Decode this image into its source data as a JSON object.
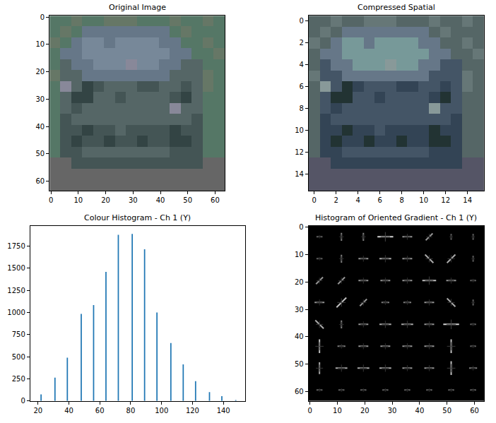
{
  "chart_data": [
    {
      "type": "image",
      "title": "Original Image",
      "xlim": [
        -0.5,
        63.5
      ],
      "ylim": [
        63.5,
        -0.5
      ],
      "xticks": [
        0,
        10,
        20,
        30,
        40,
        50,
        60
      ],
      "yticks": [
        0,
        10,
        20,
        30,
        40,
        50,
        60
      ],
      "pixels": [
        [
          "#576",
          "#576",
          "#676",
          "#576",
          "#576",
          "#676",
          "#676",
          "#676",
          "#576",
          "#576",
          "#576",
          "#676",
          "#576",
          "#576",
          "#676",
          "#576"
        ],
        [
          "#576",
          "#676",
          "#576",
          "#678",
          "#678",
          "#678",
          "#678",
          "#678",
          "#678",
          "#678",
          "#678",
          "#576",
          "#676",
          "#576",
          "#576",
          "#576"
        ],
        [
          "#676",
          "#576",
          "#678",
          "#789",
          "#789",
          "#678",
          "#789",
          "#789",
          "#789",
          "#789",
          "#678",
          "#678",
          "#576",
          "#576",
          "#676",
          "#576"
        ],
        [
          "#576",
          "#678",
          "#678",
          "#789",
          "#789",
          "#789",
          "#789",
          "#789",
          "#789",
          "#789",
          "#789",
          "#678",
          "#678",
          "#576",
          "#576",
          "#676"
        ],
        [
          "#576",
          "#566",
          "#678",
          "#678",
          "#789",
          "#789",
          "#789",
          "#889",
          "#789",
          "#789",
          "#678",
          "#678",
          "#566",
          "#566",
          "#576",
          "#576"
        ],
        [
          "#676",
          "#566",
          "#566",
          "#678",
          "#678",
          "#678",
          "#678",
          "#678",
          "#678",
          "#678",
          "#678",
          "#566",
          "#566",
          "#566",
          "#676",
          "#576"
        ],
        [
          "#576",
          "#889",
          "#566",
          "#344",
          "#455",
          "#566",
          "#566",
          "#566",
          "#455",
          "#455",
          "#566",
          "#566",
          "#455",
          "#566",
          "#676",
          "#576"
        ],
        [
          "#576",
          "#566",
          "#344",
          "#344",
          "#566",
          "#566",
          "#455",
          "#566",
          "#566",
          "#566",
          "#566",
          "#455",
          "#344",
          "#566",
          "#576",
          "#576"
        ],
        [
          "#576",
          "#566",
          "#455",
          "#566",
          "#566",
          "#566",
          "#566",
          "#566",
          "#566",
          "#566",
          "#566",
          "#889",
          "#566",
          "#566",
          "#576",
          "#576"
        ],
        [
          "#576",
          "#455",
          "#566",
          "#566",
          "#566",
          "#566",
          "#566",
          "#566",
          "#566",
          "#566",
          "#566",
          "#566",
          "#566",
          "#455",
          "#576",
          "#576"
        ],
        [
          "#576",
          "#455",
          "#455",
          "#344",
          "#455",
          "#455",
          "#566",
          "#455",
          "#455",
          "#455",
          "#455",
          "#344",
          "#455",
          "#455",
          "#576",
          "#576"
        ],
        [
          "#576",
          "#455",
          "#344",
          "#455",
          "#455",
          "#344",
          "#455",
          "#455",
          "#344",
          "#455",
          "#455",
          "#344",
          "#344",
          "#455",
          "#576",
          "#576"
        ],
        [
          "#576",
          "#455",
          "#455",
          "#566",
          "#566",
          "#566",
          "#566",
          "#566",
          "#566",
          "#566",
          "#566",
          "#455",
          "#455",
          "#455",
          "#576",
          "#576"
        ],
        [
          "#666",
          "#666",
          "#455",
          "#455",
          "#455",
          "#455",
          "#455",
          "#455",
          "#455",
          "#455",
          "#455",
          "#455",
          "#455",
          "#455",
          "#666",
          "#666"
        ],
        [
          "#666",
          "#666",
          "#666",
          "#666",
          "#666",
          "#666",
          "#666",
          "#666",
          "#666",
          "#666",
          "#666",
          "#666",
          "#666",
          "#666",
          "#666",
          "#666"
        ],
        [
          "#666",
          "#666",
          "#666",
          "#666",
          "#666",
          "#666",
          "#666",
          "#666",
          "#666",
          "#666",
          "#666",
          "#666",
          "#666",
          "#666",
          "#666",
          "#666"
        ]
      ]
    },
    {
      "type": "image",
      "title": "Compressed Spatial",
      "xlim": [
        -0.5,
        15.5
      ],
      "ylim": [
        15.5,
        -0.5
      ],
      "xticks": [
        0,
        2,
        4,
        6,
        8,
        10,
        12,
        14
      ],
      "yticks": [
        0,
        2,
        4,
        6,
        8,
        10,
        12,
        14
      ],
      "pixels": [
        [
          "#566",
          "#566",
          "#677",
          "#566",
          "#566",
          "#677",
          "#677",
          "#677",
          "#566",
          "#566",
          "#566",
          "#677",
          "#566",
          "#566",
          "#677",
          "#566"
        ],
        [
          "#566",
          "#677",
          "#566",
          "#678",
          "#678",
          "#678",
          "#678",
          "#678",
          "#678",
          "#678",
          "#678",
          "#566",
          "#677",
          "#566",
          "#566",
          "#566"
        ],
        [
          "#677",
          "#566",
          "#678",
          "#799",
          "#799",
          "#678",
          "#799",
          "#799",
          "#799",
          "#799",
          "#678",
          "#678",
          "#566",
          "#566",
          "#677",
          "#566"
        ],
        [
          "#566",
          "#678",
          "#678",
          "#799",
          "#799",
          "#799",
          "#799",
          "#799",
          "#799",
          "#799",
          "#799",
          "#678",
          "#678",
          "#566",
          "#566",
          "#677"
        ],
        [
          "#566",
          "#456",
          "#678",
          "#678",
          "#799",
          "#799",
          "#799",
          "#899",
          "#799",
          "#799",
          "#678",
          "#678",
          "#456",
          "#456",
          "#566",
          "#566"
        ],
        [
          "#677",
          "#456",
          "#456",
          "#678",
          "#678",
          "#678",
          "#678",
          "#678",
          "#678",
          "#678",
          "#678",
          "#456",
          "#456",
          "#456",
          "#677",
          "#566"
        ],
        [
          "#566",
          "#899",
          "#456",
          "#233",
          "#345",
          "#456",
          "#456",
          "#456",
          "#345",
          "#345",
          "#456",
          "#456",
          "#345",
          "#456",
          "#677",
          "#566"
        ],
        [
          "#566",
          "#456",
          "#233",
          "#233",
          "#456",
          "#456",
          "#345",
          "#456",
          "#456",
          "#456",
          "#456",
          "#345",
          "#233",
          "#456",
          "#566",
          "#566"
        ],
        [
          "#566",
          "#456",
          "#345",
          "#456",
          "#456",
          "#456",
          "#456",
          "#456",
          "#456",
          "#456",
          "#456",
          "#899",
          "#456",
          "#456",
          "#566",
          "#566"
        ],
        [
          "#566",
          "#345",
          "#456",
          "#456",
          "#456",
          "#456",
          "#456",
          "#456",
          "#456",
          "#456",
          "#456",
          "#456",
          "#456",
          "#345",
          "#566",
          "#566"
        ],
        [
          "#566",
          "#345",
          "#345",
          "#233",
          "#345",
          "#345",
          "#456",
          "#345",
          "#345",
          "#345",
          "#345",
          "#233",
          "#345",
          "#345",
          "#566",
          "#566"
        ],
        [
          "#566",
          "#345",
          "#233",
          "#345",
          "#345",
          "#233",
          "#345",
          "#345",
          "#233",
          "#345",
          "#345",
          "#233",
          "#233",
          "#345",
          "#566",
          "#566"
        ],
        [
          "#566",
          "#345",
          "#345",
          "#456",
          "#456",
          "#456",
          "#456",
          "#456",
          "#456",
          "#456",
          "#456",
          "#345",
          "#345",
          "#345",
          "#566",
          "#566"
        ],
        [
          "#556",
          "#556",
          "#345",
          "#345",
          "#345",
          "#345",
          "#345",
          "#345",
          "#345",
          "#345",
          "#345",
          "#345",
          "#345",
          "#345",
          "#556",
          "#556"
        ],
        [
          "#556",
          "#556",
          "#556",
          "#556",
          "#556",
          "#556",
          "#556",
          "#556",
          "#556",
          "#556",
          "#556",
          "#556",
          "#556",
          "#556",
          "#556",
          "#556"
        ],
        [
          "#556",
          "#556",
          "#556",
          "#556",
          "#556",
          "#556",
          "#556",
          "#556",
          "#556",
          "#556",
          "#556",
          "#556",
          "#556",
          "#556",
          "#556",
          "#556"
        ]
      ]
    },
    {
      "type": "bar",
      "title": "Colour Histogram - Ch 1 (Y)",
      "color": "#1f77b4",
      "x": [
        22,
        31,
        39,
        48,
        56,
        64,
        72,
        81,
        89,
        97,
        106,
        114,
        122,
        131,
        139,
        148
      ],
      "values": [
        75,
        265,
        490,
        985,
        1085,
        1460,
        1880,
        1890,
        1715,
        1000,
        655,
        415,
        225,
        100,
        55,
        10
      ],
      "xlim": [
        15,
        154
      ],
      "ylim": [
        0,
        1980
      ],
      "xticks": [
        20,
        40,
        60,
        80,
        100,
        120,
        140
      ],
      "yticks": [
        0,
        250,
        500,
        750,
        1000,
        1250,
        1500,
        1750
      ]
    },
    {
      "type": "hog",
      "title": "Histogram of Oriented Gradient - Ch 1 (Y)",
      "xlim": [
        -0.5,
        63.5
      ],
      "ylim": [
        63.5,
        -0.5
      ],
      "xticks": [
        0,
        10,
        20,
        30,
        40,
        50,
        60
      ],
      "yticks": [
        0,
        10,
        20,
        30,
        40,
        50,
        60
      ],
      "angles": [
        [
          0,
          90,
          90,
          0,
          0,
          45,
          90,
          90
        ],
        [
          0,
          90,
          0,
          0,
          0,
          135,
          45,
          90
        ],
        [
          45,
          45,
          0,
          0,
          0,
          0,
          0,
          0
        ],
        [
          0,
          45,
          45,
          0,
          0,
          0,
          135,
          90
        ],
        [
          135,
          90,
          0,
          0,
          0,
          0,
          0,
          0
        ],
        [
          90,
          0,
          0,
          0,
          0,
          0,
          90,
          0
        ],
        [
          90,
          0,
          0,
          0,
          0,
          0,
          90,
          0
        ],
        [
          0,
          0,
          0,
          0,
          0,
          0,
          0,
          0
        ]
      ],
      "magnitudes": [
        [
          0.3,
          0.4,
          0.4,
          0.8,
          0.5,
          0.5,
          0.3,
          0.3
        ],
        [
          0.3,
          0.4,
          0.5,
          0.6,
          0.5,
          0.6,
          0.6,
          0.3
        ],
        [
          0.5,
          0.5,
          0.5,
          0.5,
          0.5,
          0.7,
          0.5,
          0.3
        ],
        [
          0.5,
          0.7,
          0.5,
          0.4,
          0.4,
          0.5,
          0.6,
          0.3
        ],
        [
          0.6,
          0.4,
          0.5,
          0.6,
          0.6,
          0.5,
          0.8,
          0.3
        ],
        [
          0.7,
          0.4,
          0.5,
          0.5,
          0.5,
          0.5,
          0.7,
          0.3
        ],
        [
          0.6,
          0.6,
          0.6,
          0.6,
          0.5,
          0.5,
          0.7,
          0.4
        ],
        [
          0.3,
          0.3,
          0.3,
          0.3,
          0.3,
          0.3,
          0.3,
          0.3
        ]
      ]
    }
  ]
}
